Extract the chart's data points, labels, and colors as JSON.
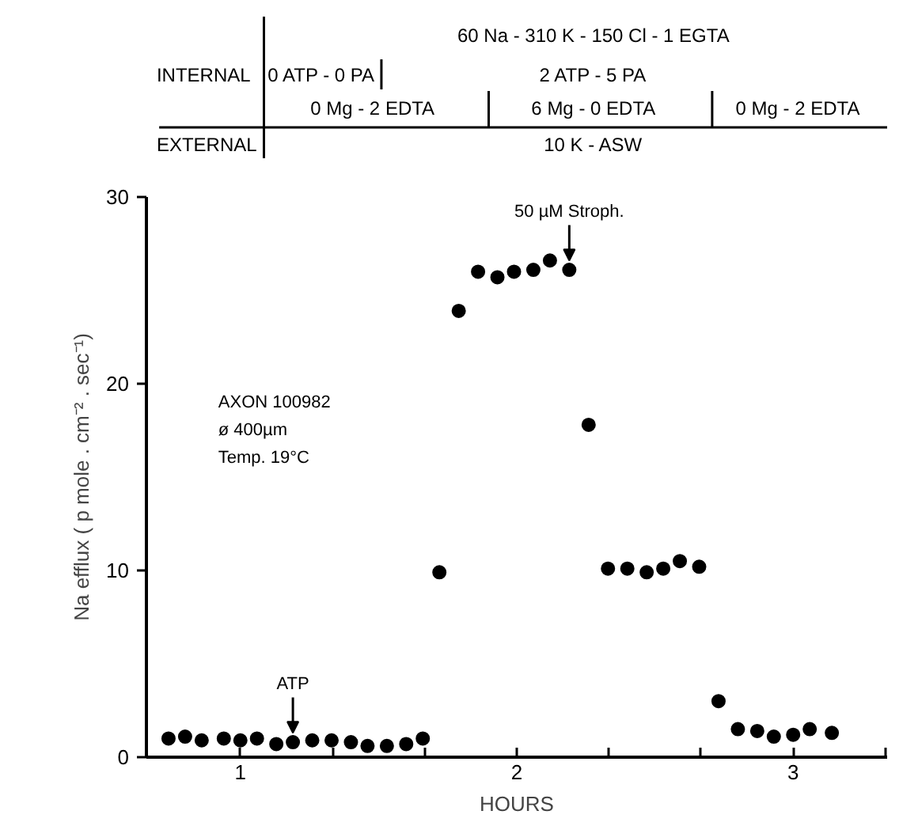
{
  "chart_data": {
    "type": "scatter",
    "xlabel": "HOURS",
    "ylabel": "Na efflux ( p mole . cm⁻² . sec⁻¹)",
    "x": [
      0.74,
      0.8,
      0.86,
      0.94,
      1.0,
      1.06,
      1.13,
      1.19,
      1.26,
      1.33,
      1.4,
      1.46,
      1.53,
      1.6,
      1.66,
      1.72,
      1.79,
      1.86,
      1.93,
      1.99,
      2.06,
      2.12,
      2.19,
      2.26,
      2.33,
      2.4,
      2.47,
      2.53,
      2.59,
      2.66,
      2.73,
      2.8,
      2.87,
      2.93,
      3.0,
      3.06,
      3.14
    ],
    "values": [
      1.0,
      1.1,
      0.9,
      1.0,
      0.9,
      1.0,
      0.7,
      0.8,
      0.9,
      0.9,
      0.8,
      0.6,
      0.6,
      0.7,
      1.0,
      9.9,
      23.9,
      26.0,
      25.7,
      26.0,
      26.1,
      26.6,
      26.1,
      17.8,
      10.1,
      10.1,
      9.9,
      10.1,
      10.5,
      10.2,
      3.0,
      1.5,
      1.4,
      1.1,
      1.2,
      1.5,
      1.3
    ],
    "color": "#000000",
    "marker": "circle",
    "grid": false,
    "xlim": [
      0.66,
      3.34
    ],
    "ylim": [
      0,
      30
    ],
    "xticks": [
      1,
      {
        "value": 1.333,
        "label": null
      },
      {
        "value": 1.667,
        "label": null
      },
      2,
      {
        "value": 2.333,
        "label": null
      },
      {
        "value": 2.667,
        "label": null
      },
      3,
      {
        "value": 3.333,
        "label": null
      }
    ],
    "yticks": [
      0,
      10,
      20,
      30
    ],
    "annotations": [
      "INTERNAL",
      "60 Na - 310 K - 150 Cl - 1 EGTA",
      "0 ATP - 0 PA",
      "2 ATP - 5 PA",
      "0 Mg - 2 EDTA",
      "6 Mg - 0 EDTA",
      "0 Mg - 2 EDTA",
      "EXTERNAL",
      "10 K - ASW",
      "AXON   100982",
      "ø   400µm",
      "Temp.  19°C",
      {
        "text": "ATP",
        "x": 1.19,
        "y": 0.8
      },
      {
        "text": "50 µM Stroph.",
        "x": 2.19,
        "y": 26.1
      }
    ]
  }
}
